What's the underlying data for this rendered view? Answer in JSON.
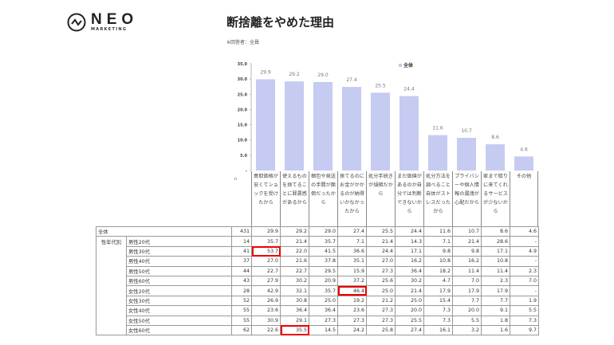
{
  "logo": {
    "name": "NEO",
    "sub": "MARKETING"
  },
  "title": "断捨離をやめた理由",
  "note": "※回答者：全員",
  "legend": "全体",
  "n_label": "n",
  "chart_data": {
    "type": "bar",
    "categories": [
      "買取価格が安くてショックを受けたから",
      "使えるものを捨てることに罪悪感があるから",
      "梱包や発送の手間が面倒だったから",
      "捨てるのにお金がかかるのが納得いかなかったから",
      "処分手続きが煩雑だから",
      "まだ価値があるのか自分では判断できないから",
      "処分方法を調べること自体がストレスだったから",
      "プライバシーや個人情報の漏洩が心配だから",
      "家まで取りに来てくれるサービスが少ないから",
      "その他"
    ],
    "series": [
      {
        "name": "全体",
        "values": [
          29.9,
          29.2,
          29.0,
          27.4,
          25.5,
          24.4,
          11.6,
          10.7,
          8.6,
          4.6
        ]
      }
    ],
    "yticks": [
      "-",
      "5.0",
      "10.0",
      "15.0",
      "20.0",
      "25.0",
      "30.0",
      "35.0"
    ],
    "ylim": [
      0,
      35
    ],
    "color": "#c5cbf1",
    "grid": false,
    "legend_position": "top"
  },
  "table": {
    "total": {
      "label": "全体",
      "n": "431",
      "values": [
        "29.9",
        "29.2",
        "29.0",
        "27.4",
        "25.5",
        "24.4",
        "11.6",
        "10.7",
        "8.6",
        "4.6"
      ]
    },
    "group_label": "性年代別",
    "highlight_color": "#e00000",
    "rows": [
      {
        "label": "男性20代",
        "n": "14",
        "values": [
          "35.7",
          "21.4",
          "35.7",
          "7.1",
          "21.4",
          "14.3",
          "7.1",
          "21.4",
          "28.6",
          "-"
        ]
      },
      {
        "label": "男性30代",
        "n": "41",
        "values": [
          "53.7",
          "22.0",
          "41.5",
          "36.6",
          "24.4",
          "17.1",
          "9.8",
          "9.8",
          "17.1",
          "4.9"
        ],
        "highlight": [
          0
        ]
      },
      {
        "label": "男性40代",
        "n": "37",
        "values": [
          "27.0",
          "21.6",
          "37.8",
          "35.1",
          "27.0",
          "16.2",
          "10.8",
          "16.2",
          "10.8",
          "-"
        ]
      },
      {
        "label": "男性50代",
        "n": "44",
        "values": [
          "22.7",
          "22.7",
          "29.5",
          "15.9",
          "27.3",
          "36.4",
          "18.2",
          "11.4",
          "11.4",
          "2.3"
        ]
      },
      {
        "label": "男性60代",
        "n": "43",
        "values": [
          "27.9",
          "30.2",
          "20.9",
          "37.2",
          "25.6",
          "30.2",
          "4.7",
          "7.0",
          "2.3",
          "7.0"
        ]
      },
      {
        "label": "女性20代",
        "n": "28",
        "values": [
          "42.9",
          "32.1",
          "35.7",
          "46.4",
          "25.0",
          "21.4",
          "17.9",
          "17.9",
          "17.9",
          "-"
        ],
        "highlight": [
          3
        ]
      },
      {
        "label": "女性30代",
        "n": "52",
        "values": [
          "26.9",
          "30.8",
          "25.0",
          "19.2",
          "21.2",
          "25.0",
          "15.4",
          "7.7",
          "7.7",
          "1.9"
        ]
      },
      {
        "label": "女性40代",
        "n": "55",
        "values": [
          "23.6",
          "36.4",
          "36.4",
          "23.6",
          "27.3",
          "20.0",
          "7.3",
          "20.0",
          "9.1",
          "5.5"
        ]
      },
      {
        "label": "女性50代",
        "n": "55",
        "values": [
          "30.9",
          "29.1",
          "27.3",
          "27.3",
          "27.3",
          "25.5",
          "7.3",
          "5.5",
          "1.8",
          "7.3"
        ]
      },
      {
        "label": "女性60代",
        "n": "62",
        "values": [
          "22.6",
          "35.5",
          "14.5",
          "24.2",
          "25.8",
          "27.4",
          "16.1",
          "3.2",
          "1.6",
          "9.7"
        ],
        "highlight": [
          1
        ]
      }
    ]
  }
}
